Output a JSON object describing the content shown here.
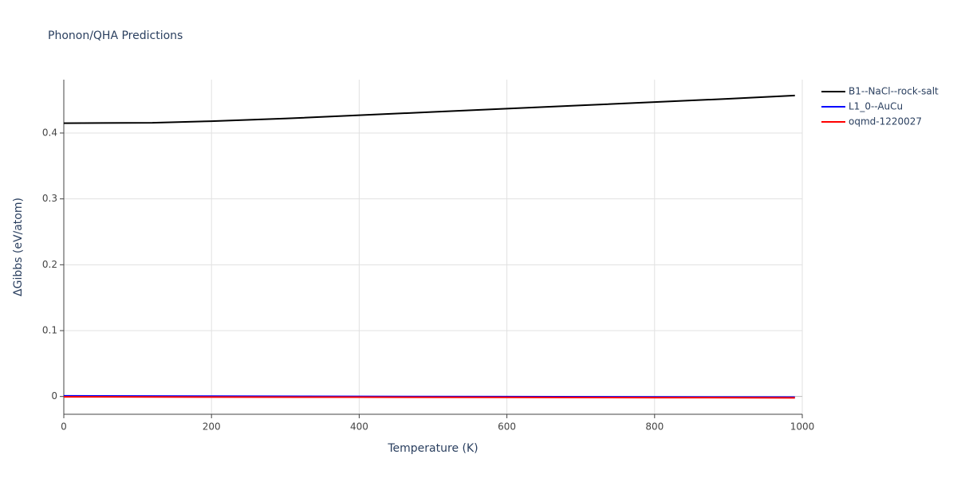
{
  "chart_data": {
    "type": "line",
    "title": "Phonon/QHA Predictions",
    "x_label": "Temperature (K)",
    "y_label": "ΔGibbs (eV/atom)",
    "xlim": [
      0,
      1000
    ],
    "xticks": [
      0,
      200,
      400,
      600,
      800,
      1000
    ],
    "ylim": [
      -0.027,
      0.481
    ],
    "yticks": [
      0,
      0.1,
      0.2,
      0.3,
      0.4
    ],
    "grid": true,
    "legend": "top-right",
    "series": [
      {
        "name": "B1--NaCl--rock-salt",
        "color": "#000000",
        "x": [
          0,
          120,
          200,
          300,
          400,
          500,
          600,
          700,
          800,
          900,
          990
        ],
        "values": [
          0.415,
          0.4155,
          0.418,
          0.422,
          0.427,
          0.432,
          0.437,
          0.442,
          0.447,
          0.452,
          0.457
        ]
      },
      {
        "name": "L1_0--AuCu",
        "color": "#0000ff",
        "x": [
          0,
          200,
          400,
          600,
          800,
          990
        ],
        "values": [
          0.001,
          0.0005,
          0.0,
          -0.0003,
          -0.0007,
          -0.001
        ]
      },
      {
        "name": "oqmd-1220027",
        "color": "#ff0000",
        "x": [
          0,
          200,
          400,
          600,
          800,
          990
        ],
        "values": [
          -0.0005,
          -0.0008,
          -0.001,
          -0.0013,
          -0.0017,
          -0.002
        ]
      }
    ]
  }
}
